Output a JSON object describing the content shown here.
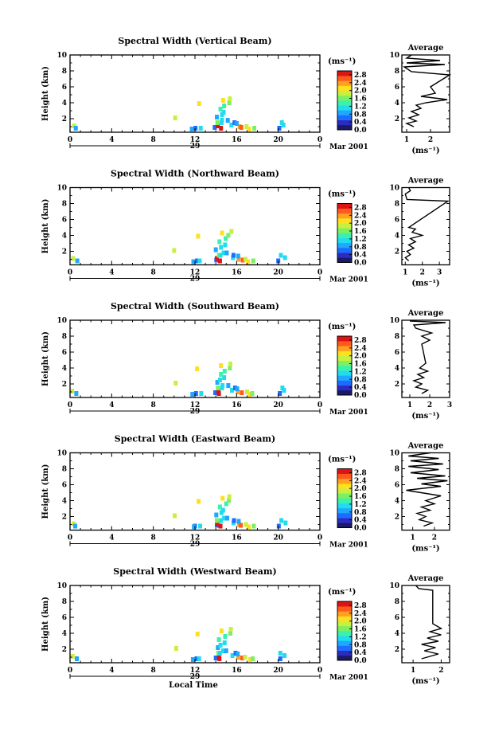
{
  "chart_data": {
    "type": "heatmap",
    "xlabel": "Local Time",
    "day_label": "29",
    "month_label": "Mar 2001",
    "x_ticks": [
      "0",
      "4",
      "8",
      "12",
      "16",
      "20",
      "0"
    ],
    "xlim": [
      0,
      24
    ],
    "ylabel": "Height (km)",
    "y_ticks": [
      "2",
      "4",
      "6",
      "8",
      "10"
    ],
    "ylim": [
      0.3,
      10
    ],
    "colorbar": {
      "unit": "(ms⁻¹)",
      "ticks": [
        "0.0",
        "0.4",
        "0.8",
        "1.2",
        "1.6",
        "2.0",
        "2.4",
        "2.8"
      ],
      "range": [
        0,
        3.0
      ],
      "colors": [
        "#1a1a66",
        "#2c2cc0",
        "#1e6cff",
        "#1ea8ff",
        "#22dcee",
        "#3cf0b0",
        "#7cf060",
        "#c8f040",
        "#ffe020",
        "#ffa020",
        "#ff5a1e",
        "#dc1414"
      ]
    },
    "panels": [
      {
        "title": "Spectral Width (Vertical Beam)",
        "avg_title": "Average",
        "avg_xlabel": "(ms⁻¹)",
        "avg_xticks": [
          "1",
          "2"
        ],
        "avg_xlim": [
          0.8,
          2.8
        ],
        "avg_profile": [
          [
            1.3,
            1.0
          ],
          [
            1.0,
            1.4
          ],
          [
            1.4,
            1.7
          ],
          [
            1.1,
            2.1
          ],
          [
            1.5,
            2.5
          ],
          [
            1.2,
            2.9
          ],
          [
            1.6,
            3.3
          ],
          [
            1.4,
            3.7
          ],
          [
            1.8,
            4.0
          ],
          [
            2.7,
            4.4
          ],
          [
            1.6,
            4.8
          ],
          [
            2.2,
            5.2
          ],
          [
            2.0,
            6.0
          ],
          [
            2.8,
            7.5
          ],
          [
            1.2,
            7.9
          ],
          [
            0.9,
            8.5
          ],
          [
            2.6,
            8.8
          ],
          [
            1.0,
            9.0
          ],
          [
            2.4,
            9.3
          ],
          [
            1.0,
            9.6
          ],
          [
            1.2,
            10.0
          ]
        ]
      },
      {
        "title": "Spectral Width (Northward Beam)",
        "avg_title": "Average",
        "avg_xlabel": "(ms⁻¹)",
        "avg_xticks": [
          "1",
          "2",
          "3"
        ],
        "avg_xlim": [
          0.8,
          3.6
        ],
        "avg_profile": [
          [
            1.2,
            0.8
          ],
          [
            1.0,
            1.2
          ],
          [
            1.3,
            1.6
          ],
          [
            1.1,
            2.0
          ],
          [
            1.5,
            2.4
          ],
          [
            1.2,
            2.8
          ],
          [
            1.6,
            3.2
          ],
          [
            1.3,
            3.6
          ],
          [
            2.0,
            4.0
          ],
          [
            1.4,
            4.4
          ],
          [
            1.6,
            4.8
          ],
          [
            1.2,
            5.0
          ],
          [
            3.5,
            8.3
          ],
          [
            1.1,
            8.5
          ],
          [
            1.0,
            9.2
          ],
          [
            1.3,
            9.6
          ],
          [
            1.2,
            10.0
          ]
        ]
      },
      {
        "title": "Spectral Width (Southward Beam)",
        "avg_title": "Average",
        "avg_xlabel": "(ms⁻¹)",
        "avg_xticks": [
          "1",
          "2",
          "3"
        ],
        "avg_xlim": [
          0.6,
          3.0
        ],
        "avg_profile": [
          [
            1.6,
            0.8
          ],
          [
            1.9,
            1.2
          ],
          [
            1.3,
            1.6
          ],
          [
            1.6,
            2.0
          ],
          [
            1.2,
            2.4
          ],
          [
            1.7,
            2.8
          ],
          [
            1.4,
            3.2
          ],
          [
            1.9,
            3.6
          ],
          [
            1.5,
            4.0
          ],
          [
            1.8,
            4.6
          ],
          [
            1.6,
            7.0
          ],
          [
            2.0,
            7.5
          ],
          [
            1.6,
            8.0
          ],
          [
            2.1,
            8.4
          ],
          [
            1.3,
            9.0
          ],
          [
            1.2,
            9.4
          ],
          [
            2.8,
            9.7
          ],
          [
            1.0,
            9.9
          ]
        ]
      },
      {
        "title": "Spectral Width (Eastward Beam)",
        "avg_title": "Average",
        "avg_xlabel": "(ms⁻¹)",
        "avg_xticks": [
          "1",
          "2"
        ],
        "avg_xlim": [
          0.5,
          2.7
        ],
        "avg_profile": [
          [
            1.5,
            0.8
          ],
          [
            1.9,
            1.2
          ],
          [
            1.3,
            1.6
          ],
          [
            1.6,
            2.0
          ],
          [
            1.2,
            2.4
          ],
          [
            1.8,
            2.8
          ],
          [
            1.4,
            3.2
          ],
          [
            2.0,
            3.6
          ],
          [
            1.6,
            4.0
          ],
          [
            2.3,
            4.6
          ],
          [
            0.7,
            5.3
          ],
          [
            2.3,
            5.8
          ],
          [
            1.4,
            6.1
          ],
          [
            2.6,
            6.5
          ],
          [
            1.2,
            6.8
          ],
          [
            2.5,
            7.1
          ],
          [
            0.9,
            7.5
          ],
          [
            2.2,
            7.9
          ],
          [
            0.8,
            8.3
          ],
          [
            2.4,
            8.6
          ],
          [
            0.9,
            9.0
          ],
          [
            2.2,
            9.3
          ],
          [
            0.8,
            9.6
          ],
          [
            1.8,
            10.0
          ]
        ]
      },
      {
        "title": "Spectral Width (Westward Beam)",
        "avg_title": "Average",
        "avg_xlabel": "(ms⁻¹)",
        "avg_xticks": [
          "1",
          "2"
        ],
        "avg_xlim": [
          0.6,
          2.3
        ],
        "avg_profile": [
          [
            1.3,
            0.8
          ],
          [
            1.6,
            1.1
          ],
          [
            1.9,
            1.4
          ],
          [
            1.4,
            1.8
          ],
          [
            1.8,
            2.2
          ],
          [
            1.3,
            2.6
          ],
          [
            1.9,
            3.0
          ],
          [
            1.5,
            3.4
          ],
          [
            2.0,
            3.8
          ],
          [
            1.6,
            4.2
          ],
          [
            2.0,
            4.6
          ],
          [
            1.7,
            5.2
          ],
          [
            1.7,
            9.4
          ],
          [
            1.2,
            9.6
          ],
          [
            1.1,
            10.0
          ]
        ]
      }
    ],
    "echo_cells": [
      [
        13.9,
        0.9,
        0.5
      ],
      [
        14.1,
        1.1,
        2.9
      ],
      [
        14.3,
        0.8,
        2.8
      ],
      [
        14.1,
        1.5,
        1.5
      ],
      [
        14.4,
        1.5,
        1.2
      ],
      [
        14.6,
        1.8,
        1.1
      ],
      [
        14.0,
        2.2,
        0.9
      ],
      [
        14.4,
        2.5,
        1.0
      ],
      [
        14.7,
        2.8,
        1.2
      ],
      [
        14.3,
        3.2,
        1.3
      ],
      [
        14.8,
        3.6,
        1.4
      ],
      [
        15.2,
        4.0,
        1.6
      ],
      [
        14.5,
        4.3,
        2.0
      ],
      [
        15.3,
        4.5,
        1.9
      ],
      [
        15.0,
        1.8,
        0.9
      ],
      [
        15.5,
        1.2,
        1.0
      ],
      [
        15.7,
        1.5,
        0.6
      ],
      [
        16.1,
        1.0,
        2.4
      ],
      [
        16.4,
        0.9,
        2.6
      ],
      [
        16.8,
        1.0,
        1.9
      ],
      [
        16.0,
        1.4,
        0.8
      ],
      [
        17.1,
        0.7,
        2.2
      ],
      [
        17.5,
        0.8,
        1.6
      ],
      [
        12.0,
        0.8,
        0.7
      ],
      [
        12.4,
        0.8,
        1.1
      ],
      [
        11.7,
        0.7,
        0.8
      ],
      [
        10.0,
        2.1,
        1.9
      ],
      [
        0.2,
        1.1,
        1.8
      ],
      [
        0.5,
        0.8,
        0.8
      ],
      [
        20.2,
        1.5,
        1.0
      ],
      [
        20.5,
        1.2,
        1.2
      ],
      [
        20.0,
        0.8,
        0.7
      ],
      [
        12.2,
        3.9,
        2.0
      ]
    ]
  }
}
